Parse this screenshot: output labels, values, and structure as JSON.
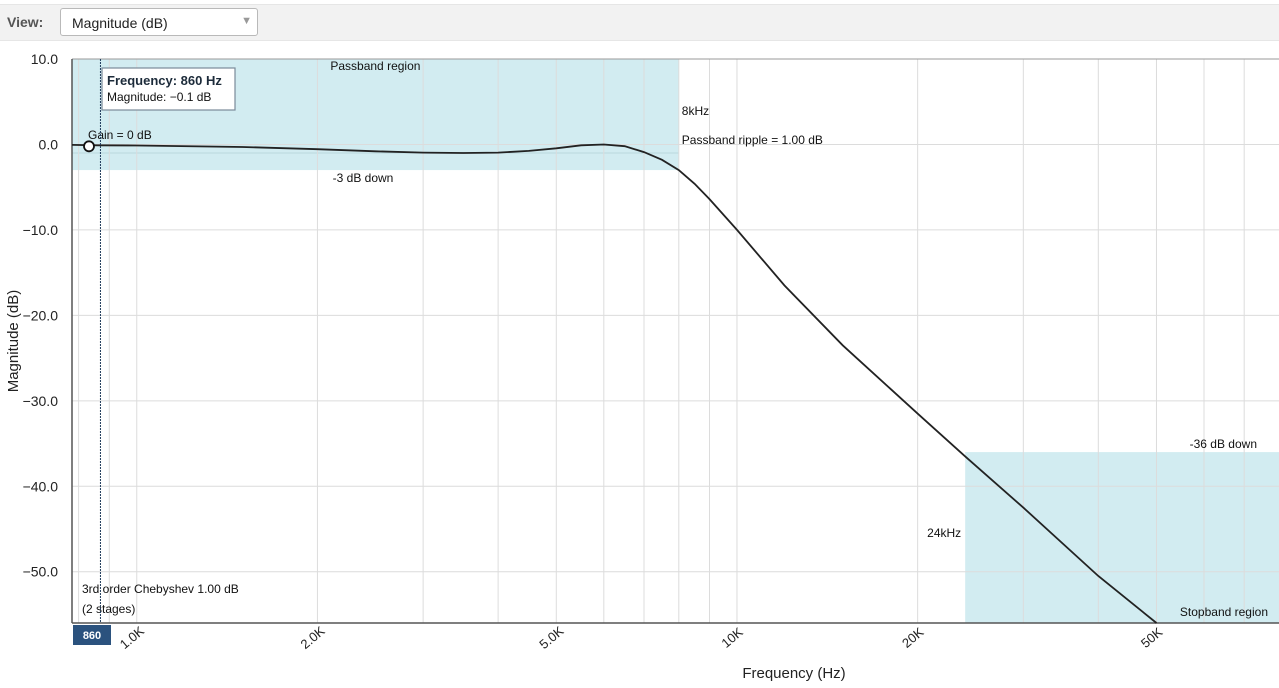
{
  "toolbar": {
    "view_label": "View:",
    "view_value": "Magnitude (dB)",
    "caret": "▼"
  },
  "chart_data": {
    "type": "line",
    "xlabel": "Frequency (Hz)",
    "ylabel": "Magnitude (dB)",
    "xscale": "log",
    "xlim": [
      780,
      80000
    ],
    "ylim": [
      -56,
      10
    ],
    "grid": true,
    "y_ticks": [
      {
        "value": 10,
        "label": "10.0"
      },
      {
        "value": 0,
        "label": "0.0"
      },
      {
        "value": -10,
        "label": "−10.0"
      },
      {
        "value": -20,
        "label": "−20.0"
      },
      {
        "value": -30,
        "label": "−30.0"
      },
      {
        "value": -40,
        "label": "−40.0"
      },
      {
        "value": -50,
        "label": "−50.0"
      }
    ],
    "x_ticks": [
      {
        "value": 1000,
        "label": "1.0K"
      },
      {
        "value": 2000,
        "label": "2.0K"
      },
      {
        "value": 5000,
        "label": "5.0K"
      },
      {
        "value": 10000,
        "label": "10K"
      },
      {
        "value": 20000,
        "label": "20K"
      },
      {
        "value": 50000,
        "label": "50K"
      }
    ],
    "series": [
      {
        "color": "#222222",
        "x": [
          780,
          860,
          1000,
          1500,
          2000,
          2500,
          3000,
          3500,
          4000,
          4500,
          5000,
          5500,
          6000,
          6500,
          7000,
          7500,
          8000,
          8500,
          9000,
          10000,
          12000,
          15000,
          20000,
          24000,
          30000,
          40000,
          50000
        ],
        "y": [
          -0.05,
          -0.1,
          -0.12,
          -0.3,
          -0.55,
          -0.8,
          -0.95,
          -1.0,
          -0.95,
          -0.75,
          -0.45,
          -0.1,
          0.0,
          -0.2,
          -0.9,
          -1.8,
          -3.0,
          -4.6,
          -6.4,
          -10.0,
          -16.5,
          -23.5,
          -31.5,
          -36.5,
          -42.5,
          -50.5,
          -56.0
        ]
      }
    ],
    "passband_region": {
      "label": "Passband region",
      "x": [
        780,
        8000
      ],
      "y": [
        -3,
        10
      ],
      "color": "#d2ecf1",
      "edge_label": "8kHz",
      "down_label": "-3 dB down",
      "ripple_label": "Passband ripple = 1.00 dB",
      "ripple_db": -1
    },
    "stopband_region": {
      "label": "Stopband region",
      "x": [
        24000,
        80000
      ],
      "y": [
        -56,
        -36
      ],
      "color": "#d2ecf1",
      "edge_label": "24kHz",
      "down_label": "-36 dB down"
    },
    "gain_label": "Gain = 0 dB",
    "filter_label_line1": "3rd order Chebyshev 1.00 dB",
    "filter_label_line2": "(2 stages)",
    "cursor": {
      "frequency": 860,
      "magnitude": -0.1,
      "tooltip_title": "Frequency: 860 Hz",
      "tooltip_value": "Magnitude: −0.1 dB",
      "axis_badge": "860"
    }
  }
}
